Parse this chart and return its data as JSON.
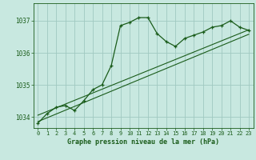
{
  "title": "Graphe pression niveau de la mer (hPa)",
  "background_color": "#c8e8e0",
  "grid_color": "#a0c8c0",
  "line_color": "#1a5c1a",
  "xlim": [
    -0.5,
    23.5
  ],
  "ylim": [
    1033.65,
    1037.55
  ],
  "yticks": [
    1034,
    1035,
    1036,
    1037
  ],
  "xticks": [
    0,
    1,
    2,
    3,
    4,
    5,
    6,
    7,
    8,
    9,
    10,
    11,
    12,
    13,
    14,
    15,
    16,
    17,
    18,
    19,
    20,
    21,
    22,
    23
  ],
  "main_series": {
    "x": [
      0,
      1,
      2,
      3,
      4,
      5,
      6,
      7,
      8,
      9,
      10,
      11,
      12,
      13,
      14,
      15,
      16,
      17,
      18,
      19,
      20,
      21,
      22,
      23
    ],
    "y": [
      1033.8,
      1034.1,
      1034.3,
      1034.35,
      1034.2,
      1034.5,
      1034.85,
      1035.0,
      1035.6,
      1036.85,
      1036.95,
      1037.1,
      1037.1,
      1036.6,
      1036.35,
      1036.2,
      1036.45,
      1036.55,
      1036.65,
      1036.8,
      1036.85,
      1037.0,
      1036.8,
      1036.7
    ]
  },
  "trend1": {
    "x": [
      0,
      23
    ],
    "y": [
      1034.05,
      1036.72
    ]
  },
  "trend2": {
    "x": [
      0,
      23
    ],
    "y": [
      1033.85,
      1036.58
    ]
  },
  "xlabel_fontsize": 6.0,
  "tick_fontsize": 5.5
}
